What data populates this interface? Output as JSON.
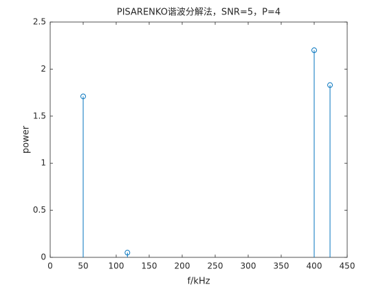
{
  "chart_data": {
    "type": "stem",
    "title": "PISARENKO谐波分解法，SNR=5，P=4",
    "x_label": "f/kHz",
    "y_label": "power",
    "x": [
      50,
      117,
      400,
      424
    ],
    "values": [
      1.71,
      0.05,
      2.2,
      1.83
    ],
    "color": "#0072bd",
    "xlim": [
      0,
      450
    ],
    "xticks": [
      0,
      50,
      100,
      150,
      200,
      250,
      300,
      350,
      400,
      450
    ],
    "ylim": [
      0,
      2.5
    ],
    "yticks": [
      0,
      0.5,
      1,
      1.5,
      2,
      2.5
    ]
  }
}
